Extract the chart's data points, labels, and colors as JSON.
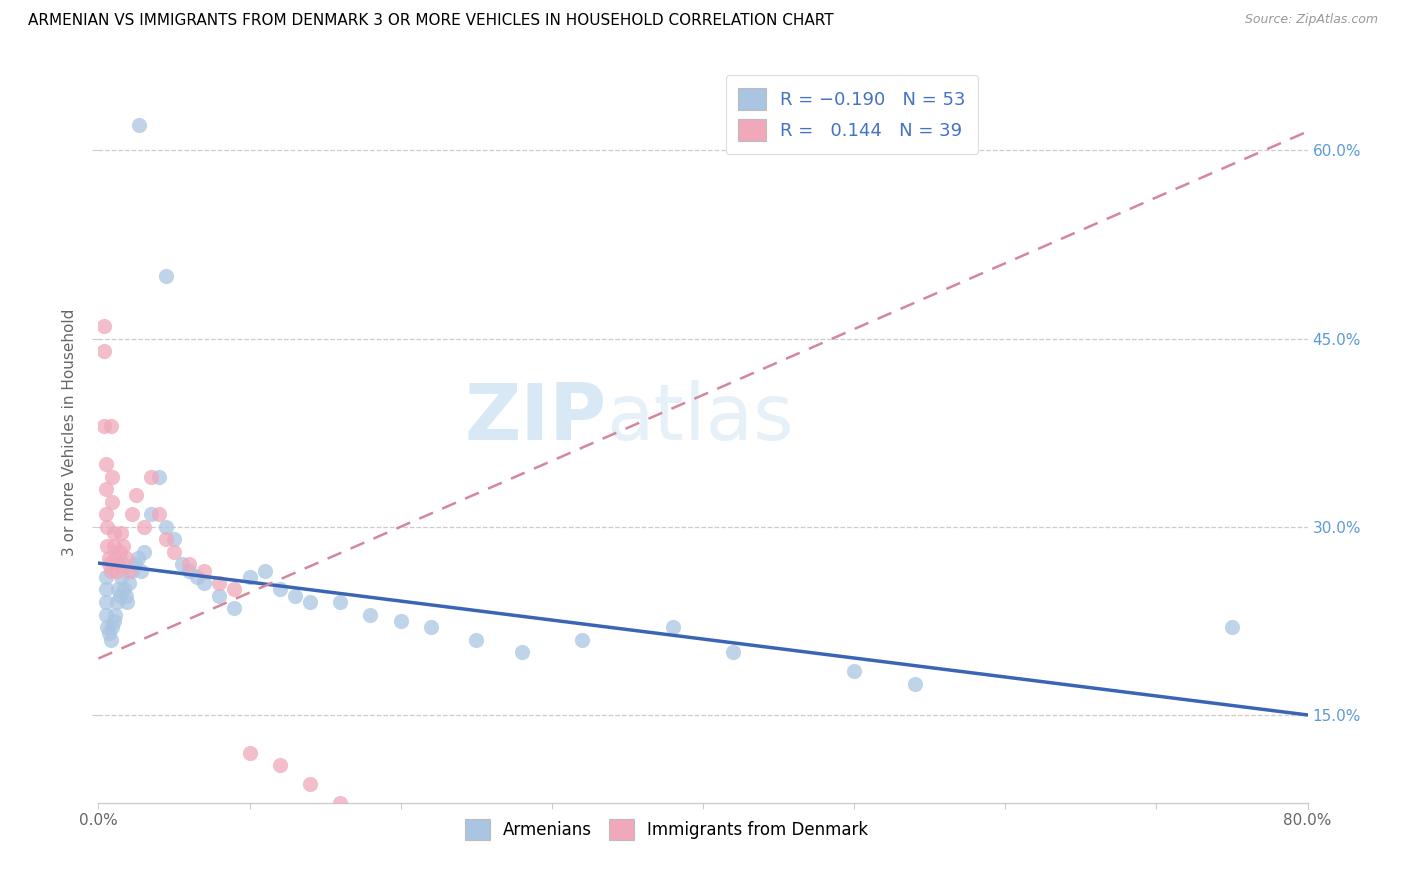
{
  "title": "ARMENIAN VS IMMIGRANTS FROM DENMARK 3 OR MORE VEHICLES IN HOUSEHOLD CORRELATION CHART",
  "source": "Source: ZipAtlas.com",
  "xmin": 0.0,
  "xmax": 0.8,
  "ymin": 0.08,
  "ymax": 0.67,
  "armenians_R": -0.19,
  "armenians_N": 53,
  "denmark_R": 0.144,
  "denmark_N": 39,
  "armenian_dot_color": "#aac5e2",
  "denmark_dot_color": "#f0a8ba",
  "armenian_line_color": "#3a65b5",
  "denmark_line_color": "#d4879a",
  "watermark_color": "#d0e8f5",
  "grid_color": "#cccccc",
  "right_axis_color": "#5b9bd5",
  "arm_line_x0": 0.0,
  "arm_line_y0": 0.271,
  "arm_line_x1": 0.8,
  "arm_line_y1": 0.15,
  "den_line_x0": 0.0,
  "den_line_y0": 0.195,
  "den_line_x1": 0.8,
  "den_line_y1": 0.615,
  "arm_scatter_x": [
    0.027,
    0.045,
    0.005,
    0.005,
    0.005,
    0.005,
    0.006,
    0.007,
    0.008,
    0.009,
    0.01,
    0.011,
    0.012,
    0.013,
    0.014,
    0.015,
    0.016,
    0.017,
    0.018,
    0.019,
    0.02,
    0.022,
    0.024,
    0.026,
    0.028,
    0.03,
    0.035,
    0.04,
    0.045,
    0.05,
    0.055,
    0.06,
    0.065,
    0.07,
    0.08,
    0.09,
    0.1,
    0.11,
    0.12,
    0.13,
    0.14,
    0.16,
    0.18,
    0.2,
    0.22,
    0.25,
    0.28,
    0.32,
    0.38,
    0.42,
    0.5,
    0.54,
    0.75
  ],
  "arm_scatter_y": [
    0.62,
    0.5,
    0.26,
    0.25,
    0.24,
    0.23,
    0.22,
    0.215,
    0.21,
    0.22,
    0.225,
    0.23,
    0.24,
    0.25,
    0.245,
    0.26,
    0.27,
    0.25,
    0.245,
    0.24,
    0.255,
    0.265,
    0.27,
    0.275,
    0.265,
    0.28,
    0.31,
    0.34,
    0.3,
    0.29,
    0.27,
    0.265,
    0.26,
    0.255,
    0.245,
    0.235,
    0.26,
    0.265,
    0.25,
    0.245,
    0.24,
    0.24,
    0.23,
    0.225,
    0.22,
    0.21,
    0.2,
    0.21,
    0.22,
    0.2,
    0.185,
    0.175,
    0.22
  ],
  "den_scatter_x": [
    0.004,
    0.004,
    0.004,
    0.005,
    0.005,
    0.005,
    0.006,
    0.006,
    0.007,
    0.007,
    0.008,
    0.008,
    0.009,
    0.009,
    0.01,
    0.01,
    0.011,
    0.012,
    0.013,
    0.014,
    0.015,
    0.016,
    0.018,
    0.02,
    0.022,
    0.025,
    0.03,
    0.035,
    0.04,
    0.045,
    0.05,
    0.06,
    0.07,
    0.08,
    0.09,
    0.1,
    0.12,
    0.14,
    0.16
  ],
  "den_scatter_y": [
    0.46,
    0.44,
    0.38,
    0.35,
    0.33,
    0.31,
    0.3,
    0.285,
    0.275,
    0.27,
    0.265,
    0.38,
    0.34,
    0.32,
    0.295,
    0.285,
    0.275,
    0.265,
    0.27,
    0.28,
    0.295,
    0.285,
    0.275,
    0.265,
    0.31,
    0.325,
    0.3,
    0.34,
    0.31,
    0.29,
    0.28,
    0.27,
    0.265,
    0.255,
    0.25,
    0.12,
    0.11,
    0.095,
    0.08
  ]
}
